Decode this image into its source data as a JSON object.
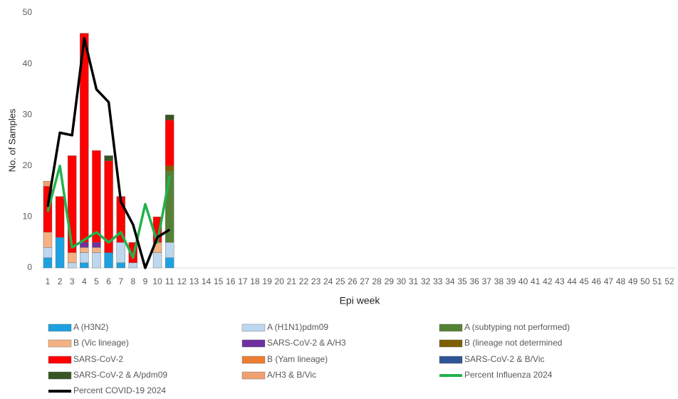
{
  "chart_data": {
    "type": "bar",
    "stacked": true,
    "x_label": "Epi week",
    "y_label": "No. of Samples",
    "categories": [
      "1",
      "2",
      "3",
      "4",
      "5",
      "6",
      "7",
      "8",
      "9",
      "10",
      "11",
      "12",
      "13",
      "14",
      "15",
      "16",
      "17",
      "18",
      "19",
      "20",
      "21",
      "22",
      "23",
      "24",
      "25",
      "26",
      "27",
      "28",
      "29",
      "30",
      "31",
      "32",
      "33",
      "34",
      "35",
      "36",
      "37",
      "38",
      "39",
      "40",
      "41",
      "42",
      "43",
      "44",
      "45",
      "46",
      "47",
      "48",
      "49",
      "50",
      "51",
      "52"
    ],
    "ylim": [
      0,
      50
    ],
    "yticks": [
      0,
      10,
      20,
      30,
      40,
      50
    ],
    "grid": false,
    "legend": "bottom",
    "series": [
      {
        "name": "A (H3N2)",
        "type": "bar",
        "color": "#1da1e0",
        "values": [
          2,
          6,
          0,
          1,
          0,
          3,
          1,
          0,
          0,
          0,
          2,
          null,
          null,
          null,
          null,
          null,
          null,
          null,
          null,
          null,
          null,
          null,
          null,
          null,
          null,
          null,
          null,
          null,
          null,
          null,
          null,
          null,
          null,
          null,
          null,
          null,
          null,
          null,
          null,
          null,
          null,
          null,
          null,
          null,
          null,
          null,
          null,
          null,
          null,
          null,
          null,
          null
        ]
      },
      {
        "name": "A (H1N1)pdm09",
        "type": "bar",
        "color": "#bdd7ee",
        "values": [
          2,
          0,
          1,
          2,
          3,
          0,
          4,
          1,
          0,
          3,
          3,
          null,
          null,
          null,
          null,
          null,
          null,
          null,
          null,
          null,
          null,
          null,
          null,
          null,
          null,
          null,
          null,
          null,
          null,
          null,
          null,
          null,
          null,
          null,
          null,
          null,
          null,
          null,
          null,
          null,
          null,
          null,
          null,
          null,
          null,
          null,
          null,
          null,
          null,
          null,
          null,
          null
        ]
      },
      {
        "name": "A (subtyping not performed)",
        "type": "bar",
        "color": "#548235",
        "values": [
          0,
          0,
          0,
          0,
          0,
          0,
          0,
          0,
          0,
          0,
          14,
          null,
          null,
          null,
          null,
          null,
          null,
          null,
          null,
          null,
          null,
          null,
          null,
          null,
          null,
          null,
          null,
          null,
          null,
          null,
          null,
          null,
          null,
          null,
          null,
          null,
          null,
          null,
          null,
          null,
          null,
          null,
          null,
          null,
          null,
          null,
          null,
          null,
          null,
          null,
          null,
          null
        ]
      },
      {
        "name": "B (Vic lineage)",
        "type": "bar",
        "color": "#f4b183",
        "values": [
          3,
          0,
          2,
          1,
          1,
          0,
          0,
          0,
          0,
          2,
          0,
          null,
          null,
          null,
          null,
          null,
          null,
          null,
          null,
          null,
          null,
          null,
          null,
          null,
          null,
          null,
          null,
          null,
          null,
          null,
          null,
          null,
          null,
          null,
          null,
          null,
          null,
          null,
          null,
          null,
          null,
          null,
          null,
          null,
          null,
          null,
          null,
          null,
          null,
          null,
          null,
          null
        ]
      },
      {
        "name": "SARS-CoV-2 & A/H3",
        "type": "bar",
        "color": "#7030a0",
        "values": [
          0,
          0,
          0,
          1,
          1,
          0,
          0,
          0,
          0,
          0,
          0,
          null,
          null,
          null,
          null,
          null,
          null,
          null,
          null,
          null,
          null,
          null,
          null,
          null,
          null,
          null,
          null,
          null,
          null,
          null,
          null,
          null,
          null,
          null,
          null,
          null,
          null,
          null,
          null,
          null,
          null,
          null,
          null,
          null,
          null,
          null,
          null,
          null,
          null,
          null,
          null,
          null
        ]
      },
      {
        "name": "B (lineage not determined",
        "type": "bar",
        "color": "#7f6000",
        "values": [
          0,
          0,
          0,
          0,
          0,
          0,
          0,
          0,
          0,
          0,
          1,
          null,
          null,
          null,
          null,
          null,
          null,
          null,
          null,
          null,
          null,
          null,
          null,
          null,
          null,
          null,
          null,
          null,
          null,
          null,
          null,
          null,
          null,
          null,
          null,
          null,
          null,
          null,
          null,
          null,
          null,
          null,
          null,
          null,
          null,
          null,
          null,
          null,
          null,
          null,
          null,
          null
        ]
      },
      {
        "name": "SARS-CoV-2",
        "type": "bar",
        "color": "#ff0000",
        "values": [
          9,
          8,
          19,
          41,
          18,
          18,
          9,
          4,
          0,
          5,
          9,
          null,
          null,
          null,
          null,
          null,
          null,
          null,
          null,
          null,
          null,
          null,
          null,
          null,
          null,
          null,
          null,
          null,
          null,
          null,
          null,
          null,
          null,
          null,
          null,
          null,
          null,
          null,
          null,
          null,
          null,
          null,
          null,
          null,
          null,
          null,
          null,
          null,
          null,
          null,
          null,
          null
        ]
      },
      {
        "name": "B (Yam lineage)",
        "type": "bar",
        "color": "#ed7d31",
        "values": [
          0,
          0,
          0,
          0,
          0,
          0,
          0,
          0,
          0,
          0,
          0,
          null,
          null,
          null,
          null,
          null,
          null,
          null,
          null,
          null,
          null,
          null,
          null,
          null,
          null,
          null,
          null,
          null,
          null,
          null,
          null,
          null,
          null,
          null,
          null,
          null,
          null,
          null,
          null,
          null,
          null,
          null,
          null,
          null,
          null,
          null,
          null,
          null,
          null,
          null,
          null,
          null
        ]
      },
      {
        "name": "SARS-CoV-2 & B/Vic",
        "type": "bar",
        "color": "#2f5597",
        "values": [
          0,
          0,
          0,
          0,
          0,
          0,
          0,
          0,
          0,
          0,
          0,
          null,
          null,
          null,
          null,
          null,
          null,
          null,
          null,
          null,
          null,
          null,
          null,
          null,
          null,
          null,
          null,
          null,
          null,
          null,
          null,
          null,
          null,
          null,
          null,
          null,
          null,
          null,
          null,
          null,
          null,
          null,
          null,
          null,
          null,
          null,
          null,
          null,
          null,
          null,
          null,
          null
        ]
      },
      {
        "name": "SARS-CoV-2 & A/pdm09",
        "type": "bar",
        "color": "#375623",
        "values": [
          0,
          0,
          0,
          0,
          0,
          1,
          0,
          0,
          0,
          0,
          1,
          null,
          null,
          null,
          null,
          null,
          null,
          null,
          null,
          null,
          null,
          null,
          null,
          null,
          null,
          null,
          null,
          null,
          null,
          null,
          null,
          null,
          null,
          null,
          null,
          null,
          null,
          null,
          null,
          null,
          null,
          null,
          null,
          null,
          null,
          null,
          null,
          null,
          null,
          null,
          null,
          null
        ]
      },
      {
        "name": "A/H3 & B/Vic",
        "type": "bar",
        "color": "#f0a070",
        "values": [
          1,
          0,
          0,
          0,
          0,
          0,
          0,
          0,
          0,
          0,
          0,
          null,
          null,
          null,
          null,
          null,
          null,
          null,
          null,
          null,
          null,
          null,
          null,
          null,
          null,
          null,
          null,
          null,
          null,
          null,
          null,
          null,
          null,
          null,
          null,
          null,
          null,
          null,
          null,
          null,
          null,
          null,
          null,
          null,
          null,
          null,
          null,
          null,
          null,
          null,
          null,
          null
        ]
      },
      {
        "name": "Percent Influenza 2024",
        "type": "line",
        "color": "#22b24c",
        "values": [
          11,
          20,
          4,
          5.5,
          7,
          5,
          7,
          2,
          12.5,
          5,
          18,
          null,
          null,
          null,
          null,
          null,
          null,
          null,
          null,
          null,
          null,
          null,
          null,
          null,
          null,
          null,
          null,
          null,
          null,
          null,
          null,
          null,
          null,
          null,
          null,
          null,
          null,
          null,
          null,
          null,
          null,
          null,
          null,
          null,
          null,
          null,
          null,
          null,
          null,
          null,
          null,
          null
        ]
      },
      {
        "name": "Percent COVID-19 2024",
        "type": "line",
        "color": "#000000",
        "values": [
          12,
          26.5,
          26,
          45,
          35,
          32.5,
          13,
          8.5,
          0,
          6,
          7.5,
          null,
          null,
          null,
          null,
          null,
          null,
          null,
          null,
          null,
          null,
          null,
          null,
          null,
          null,
          null,
          null,
          null,
          null,
          null,
          null,
          null,
          null,
          null,
          null,
          null,
          null,
          null,
          null,
          null,
          null,
          null,
          null,
          null,
          null,
          null,
          null,
          null,
          null,
          null,
          null,
          null
        ]
      }
    ]
  }
}
